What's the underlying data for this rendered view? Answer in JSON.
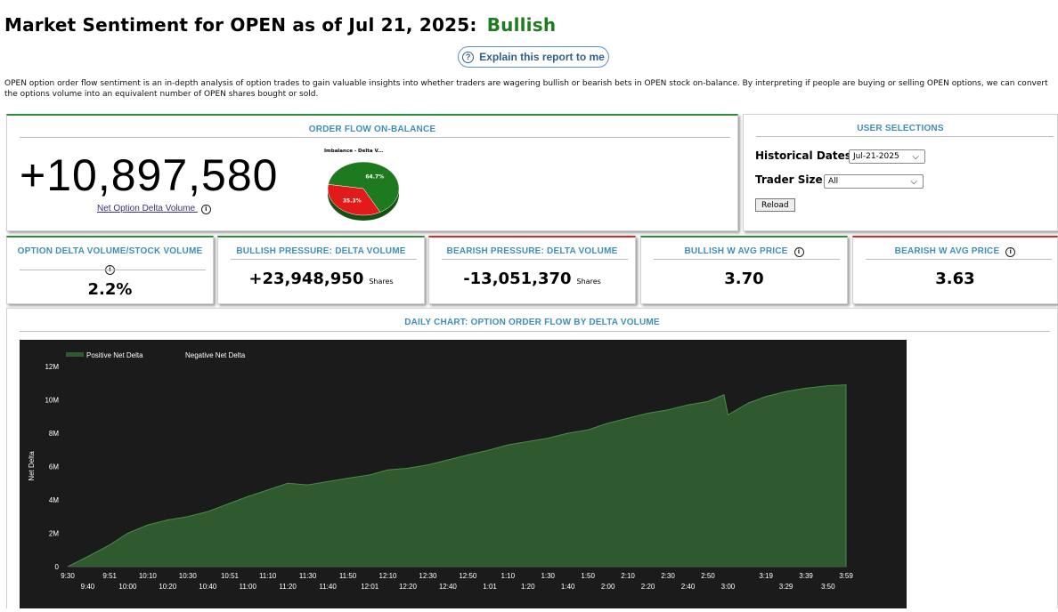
{
  "header": {
    "title": "Market Sentiment for OPEN as of Jul 21, 2025:",
    "sentiment": "Bullish",
    "explain_button": "Explain this report to me",
    "description": "OPEN option order flow sentiment is an in-depth analysis of option trades to gain valuable insights into whether traders are wagering bullish or bearish bets in OPEN stock on-balance. By interpreting if people are buying or selling OPEN options, we can convert the options volume into an equivalent number of OPEN shares bought or sold."
  },
  "order_flow": {
    "header": "ORDER FLOW ON-BALANCE",
    "value": "+10,897,580",
    "label": "Net Option Delta Volume",
    "pie_title": "Imbalance - Delta V...",
    "pie": [
      {
        "label": "64.7%",
        "value": 64.7,
        "color": "#1e7a1e"
      },
      {
        "label": "35.3%",
        "value": 35.3,
        "color": "#e21a1a"
      }
    ]
  },
  "user_selections": {
    "header": "USER SELECTIONS",
    "historical_label": "Historical Dates:",
    "historical_value": "Jul-21-2025",
    "trader_label": "Trader Size:",
    "trader_value": "All",
    "reload": "Reload"
  },
  "stats": [
    {
      "header": "OPTION DELTA VOLUME/STOCK VOLUME",
      "value": "2.2%",
      "unit": ""
    },
    {
      "header": "BULLISH PRESSURE: DELTA VOLUME",
      "value": "+23,948,950",
      "unit": "Shares"
    },
    {
      "header": "BEARISH PRESSURE: DELTA VOLUME",
      "value": "-13,051,370",
      "unit": "Shares"
    },
    {
      "header": "BULLISH W AVG PRICE",
      "value": "3.70",
      "unit": ""
    },
    {
      "header": "BEARISH W AVG PRICE",
      "value": "3.63",
      "unit": ""
    }
  ],
  "daily_chart": {
    "header": "DAILY CHART: OPTION ORDER FLOW BY DELTA VOLUME"
  },
  "colors": {
    "accent": "#3f8fb5",
    "bullish": "#1e7d1e",
    "bearish": "#d42a2a"
  },
  "chart_data": {
    "type": "area",
    "ylabel": "Net Delta",
    "ylim": [
      0,
      12000000
    ],
    "yticks": [
      0,
      2000000,
      4000000,
      6000000,
      8000000,
      10000000,
      12000000
    ],
    "ytick_labels": [
      "0",
      "2M",
      "4M",
      "6M",
      "8M",
      "10M",
      "12M"
    ],
    "xticks_top": [
      "9:30",
      "9:51",
      "10:10",
      "10:30",
      "10:51",
      "11:10",
      "11:30",
      "11:50",
      "12:10",
      "12:30",
      "12:50",
      "1:10",
      "1:30",
      "1:50",
      "2:10",
      "2:30",
      "2:50",
      "3:19",
      "3:39",
      "3:59"
    ],
    "xticks_bottom": [
      "9:40",
      "10:00",
      "10:20",
      "10:40",
      "11:00",
      "11:20",
      "11:40",
      "12:01",
      "12:20",
      "12:40",
      "1:01",
      "1:20",
      "1:40",
      "2:00",
      "2:20",
      "2:40",
      "3:00",
      "3:29",
      "3:50"
    ],
    "legend": [
      "Positive Net Delta",
      "Negative Net Delta"
    ],
    "series": [
      {
        "name": "Positive Net Delta",
        "color": "#2f5a2f",
        "x": [
          "9:30",
          "9:40",
          "9:51",
          "10:00",
          "10:10",
          "10:20",
          "10:30",
          "10:40",
          "10:51",
          "11:00",
          "11:10",
          "11:20",
          "11:30",
          "11:40",
          "11:50",
          "12:01",
          "12:10",
          "12:20",
          "12:30",
          "12:40",
          "12:50",
          "1:01",
          "1:10",
          "1:20",
          "1:30",
          "1:40",
          "1:50",
          "2:00",
          "2:10",
          "2:20",
          "2:30",
          "2:40",
          "2:50",
          "2:58",
          "3:00",
          "3:10",
          "3:19",
          "3:29",
          "3:39",
          "3:50",
          "3:59"
        ],
        "y": [
          0,
          600000,
          1300000,
          2000000,
          2500000,
          2800000,
          3000000,
          3300000,
          3800000,
          4200000,
          4600000,
          5000000,
          4900000,
          5100000,
          5300000,
          5500000,
          5800000,
          5900000,
          6100000,
          6400000,
          6700000,
          7000000,
          7300000,
          7500000,
          7700000,
          8000000,
          8200000,
          8600000,
          8900000,
          9200000,
          9400000,
          9700000,
          9900000,
          10300000,
          9100000,
          9800000,
          10200000,
          10500000,
          10700000,
          10850000,
          10900000
        ]
      },
      {
        "name": "Negative Net Delta",
        "color": "#1b1b1b",
        "x": [],
        "y": []
      }
    ]
  }
}
